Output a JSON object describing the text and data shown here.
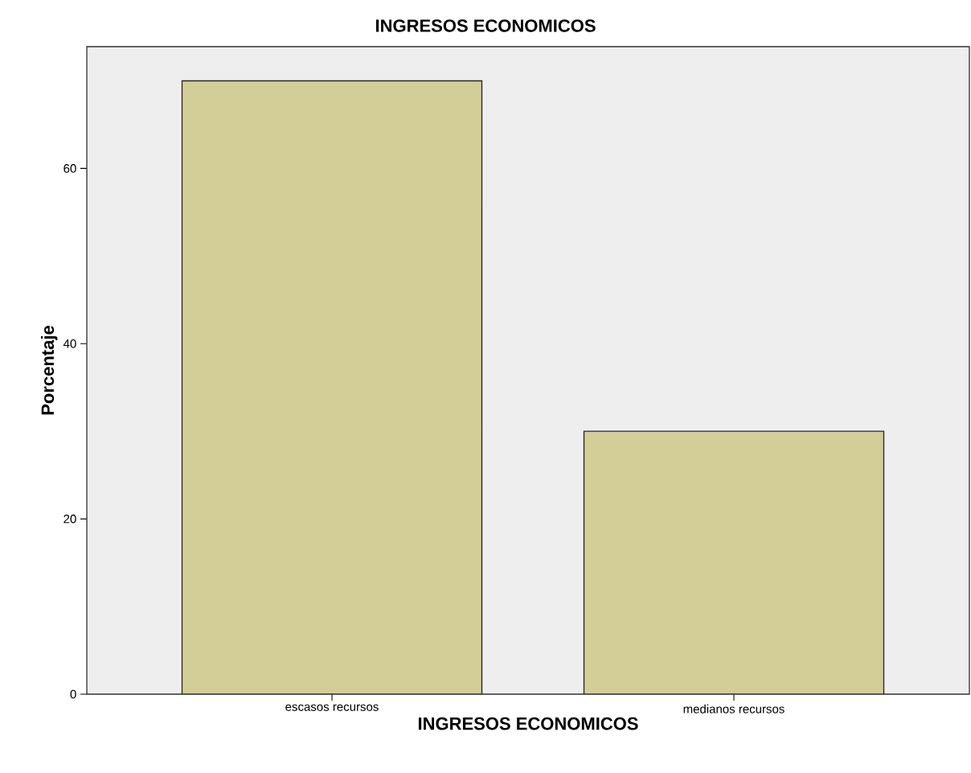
{
  "chart_data": {
    "type": "bar",
    "title": "INGRESOS ECONOMICOS",
    "xlabel": "INGRESOS ECONOMICOS",
    "ylabel": "Porcentaje",
    "categories": [
      "escasos recursos",
      "medianos recursos"
    ],
    "values": [
      70,
      30
    ],
    "color": "#d3ce97",
    "ylim": [
      0,
      73.9
    ],
    "yticks": [
      0,
      20,
      40,
      60
    ]
  }
}
